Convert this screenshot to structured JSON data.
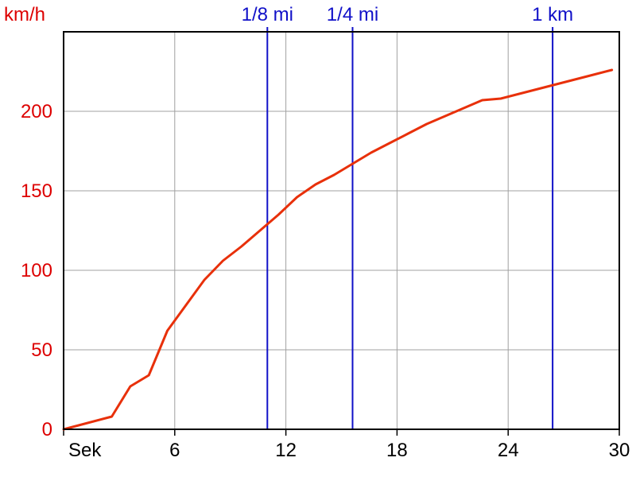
{
  "colors": {
    "speed_line": "#e8300a",
    "speed_axis_text": "#dd0000",
    "marker_lines": "#1010c8",
    "grid": "#a0a0a0",
    "frame": "#000000",
    "tick_text": "#000000"
  },
  "chart_data": {
    "type": "line",
    "title": "",
    "ylabel": "km/h",
    "xlabel": "Sek",
    "xlim": [
      0,
      30
    ],
    "ylim": [
      0,
      250
    ],
    "grid": true,
    "x_ticks": [
      6,
      12,
      18,
      24,
      30
    ],
    "y_ticks": [
      0,
      50,
      100,
      150,
      200
    ],
    "series": [
      {
        "x": [
          0,
          2.6,
          3.6,
          4.6,
          5.6,
          6.6,
          7.6,
          8.6,
          9.6,
          10.6,
          11.6,
          12.6,
          13.6,
          14.6,
          15.6,
          16.6,
          17.6,
          18.6,
          19.6,
          20.6,
          21.6,
          22.6,
          23.6,
          24.6,
          25.6,
          26.6,
          27.6,
          28.6,
          29.6
        ],
        "y": [
          0,
          8,
          27,
          34,
          62,
          78,
          94,
          106,
          115,
          125,
          135,
          146,
          154,
          160,
          167,
          174,
          180,
          186,
          192,
          197,
          202,
          207,
          208,
          211,
          214,
          217,
          220,
          223,
          226
        ]
      }
    ],
    "markers": [
      {
        "label": "1/8 mi",
        "x": 11.0
      },
      {
        "label": "1/4 mi",
        "x": 15.6
      },
      {
        "label": "1 km",
        "x": 26.4
      }
    ]
  }
}
